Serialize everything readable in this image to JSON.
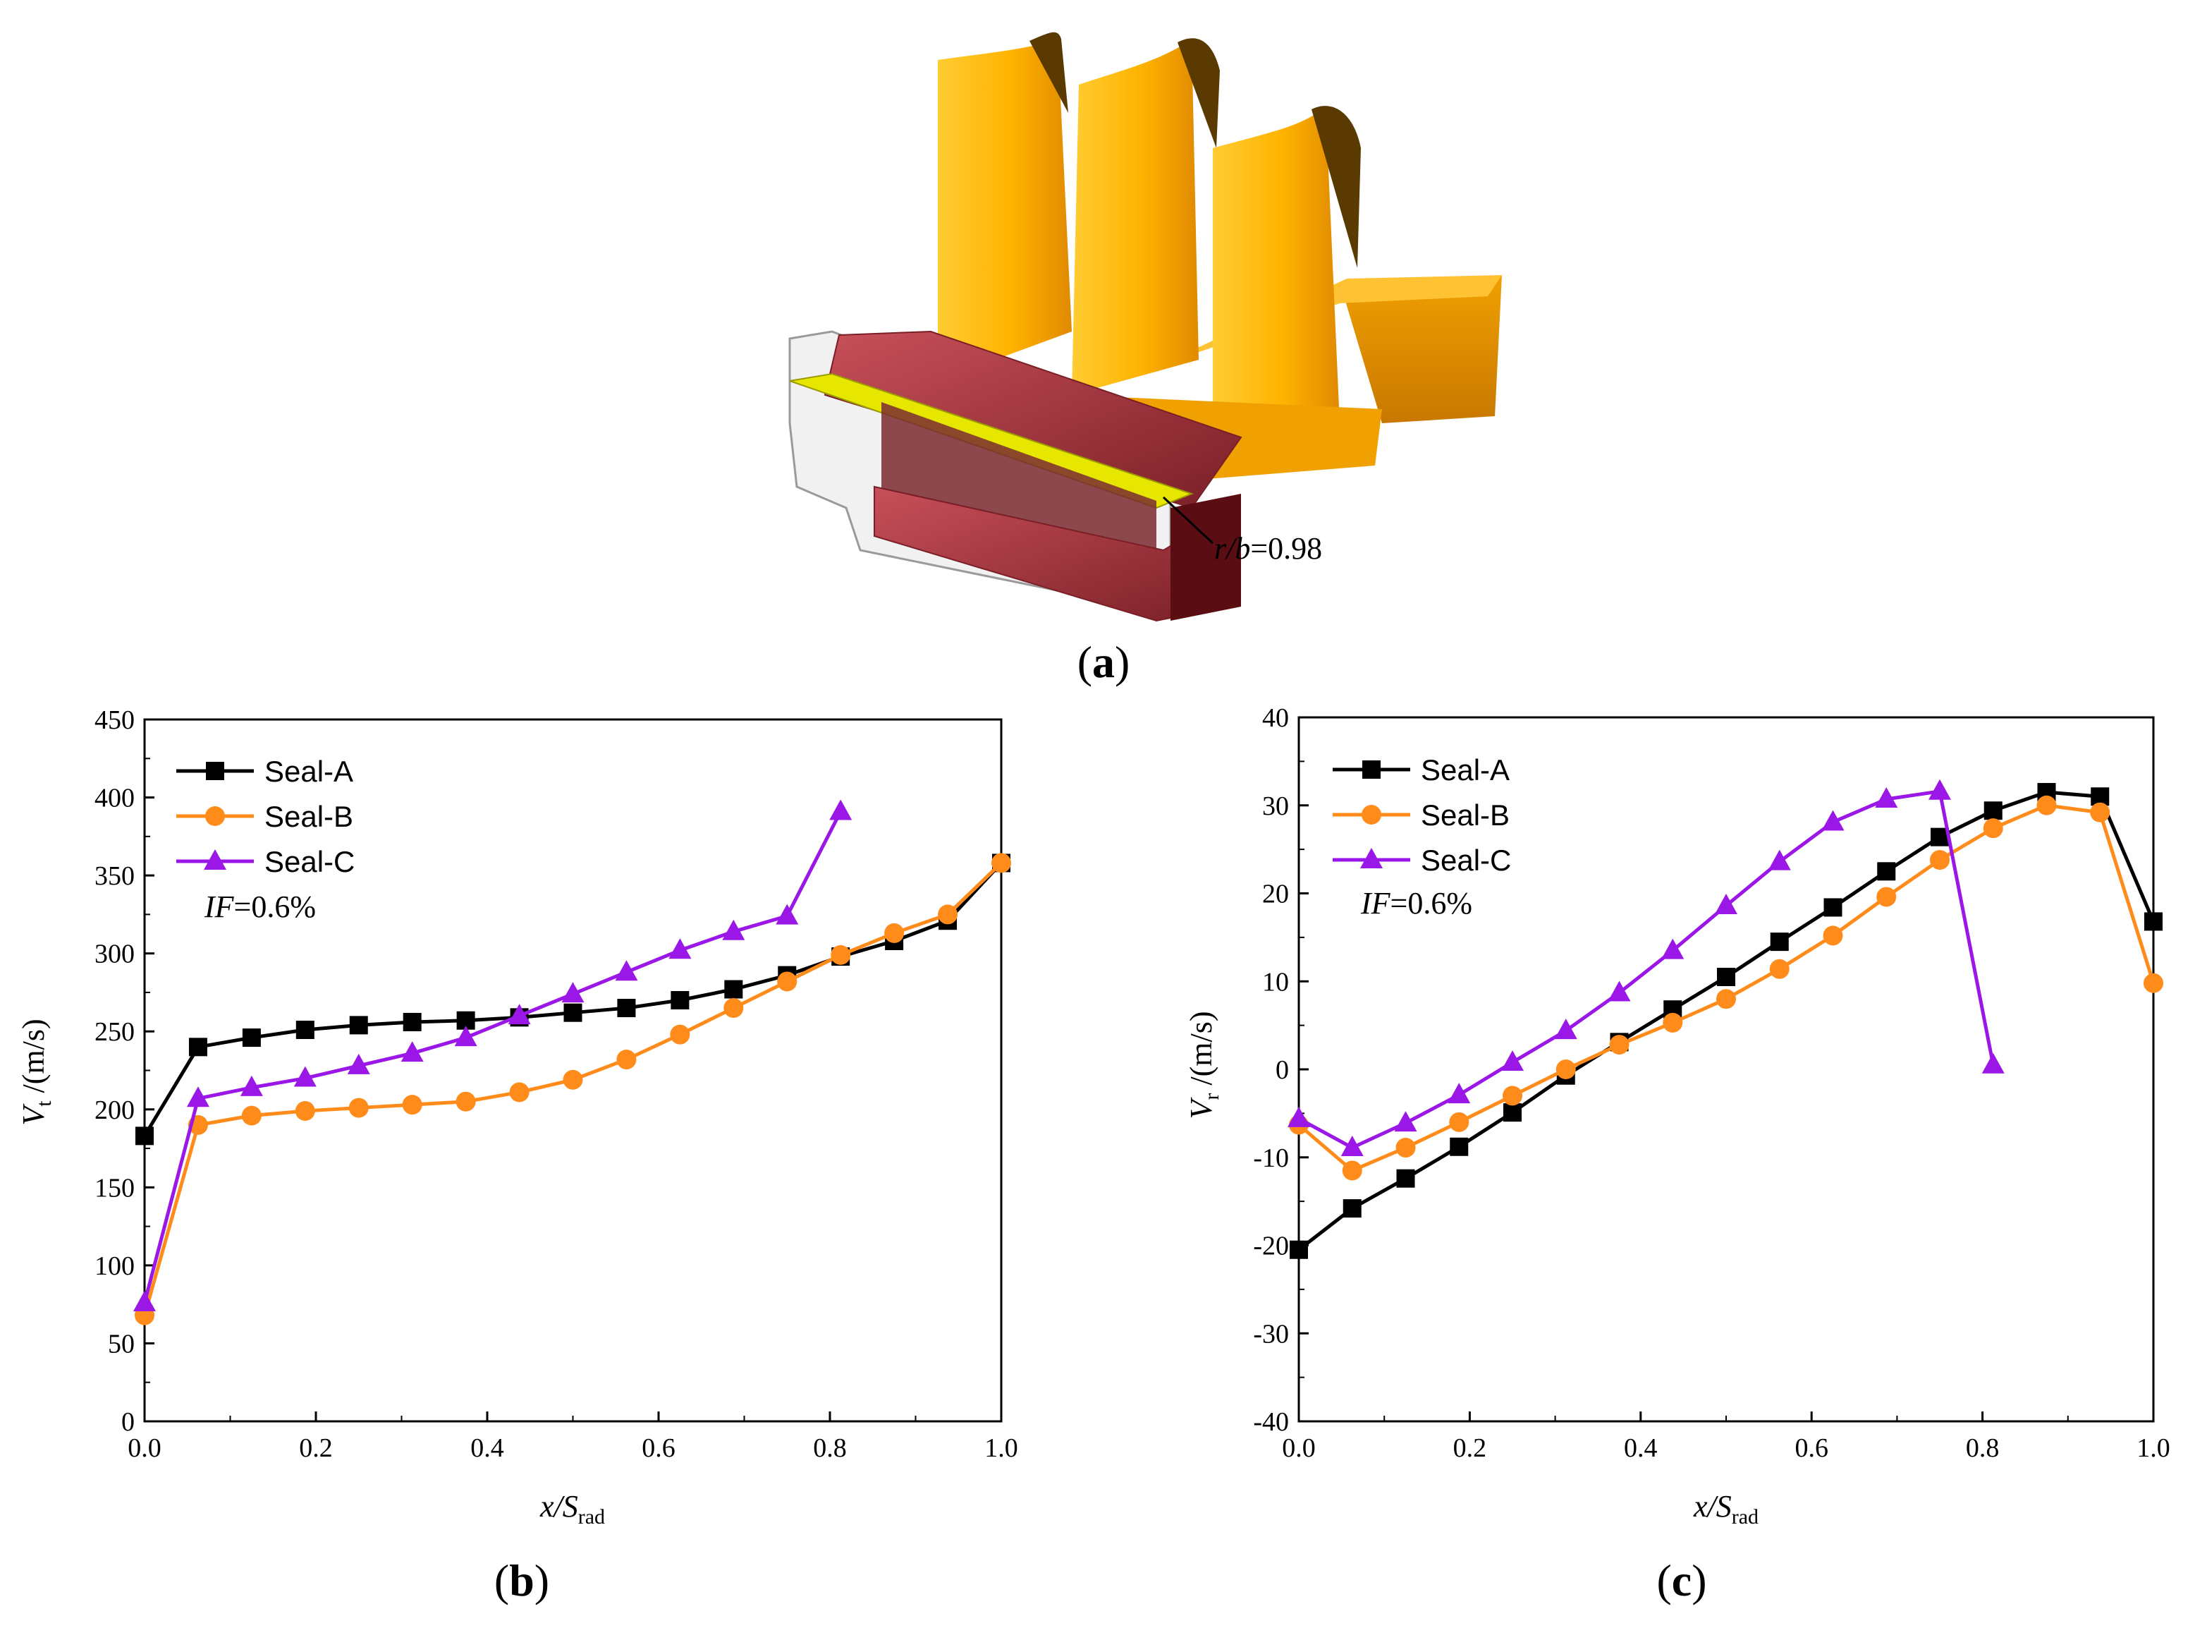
{
  "figure": {
    "panel_a": {
      "label_letter": "a",
      "annotation_r": "r/b",
      "annotation_value": "=0.98"
    },
    "panel_b": {
      "label_letter": "b"
    },
    "panel_c": {
      "label_letter": "c"
    }
  },
  "colors": {
    "Seal-A": "#000000",
    "Seal-B": "#ff8c1a",
    "Seal-C": "#9a17e8",
    "blade": "#ffb400",
    "seal_red": "#c0404a",
    "seal_yellow": "#e6e600"
  },
  "chart_data": [
    {
      "id": "b",
      "type": "line",
      "title": "",
      "xlabel_main": "x/S",
      "xlabel_sub": "rad",
      "ylabel_main": "V",
      "ylabel_sub": "t",
      "ylabel_unit": " /(m/s)",
      "xlim": [
        0,
        1.0
      ],
      "ylim": [
        0,
        450
      ],
      "xticks": [
        0.0,
        0.2,
        0.4,
        0.6,
        0.8,
        1.0
      ],
      "xtick_labels": [
        "0.0",
        "0.2",
        "0.4",
        "0.6",
        "0.8",
        "1.0"
      ],
      "yticks": [
        0,
        50,
        100,
        150,
        200,
        250,
        300,
        350,
        400,
        450
      ],
      "ytick_labels": [
        "0",
        "50",
        "100",
        "150",
        "200",
        "250",
        "300",
        "350",
        "400",
        "450"
      ],
      "annotation_italic": "IF",
      "annotation_value": "=0.6%",
      "legend_position": "top-left",
      "series": [
        {
          "name": "Seal-A",
          "marker": "square",
          "x": [
            0,
            0.0625,
            0.125,
            0.1875,
            0.25,
            0.3125,
            0.375,
            0.4375,
            0.5,
            0.5625,
            0.625,
            0.6875,
            0.75,
            0.8125,
            0.875,
            0.9375,
            1.0
          ],
          "y": [
            183,
            240,
            246,
            251,
            254,
            256,
            257,
            259,
            262,
            265,
            270,
            277,
            286,
            298,
            308,
            321,
            358
          ]
        },
        {
          "name": "Seal-B",
          "marker": "circle",
          "x": [
            0,
            0.0625,
            0.125,
            0.1875,
            0.25,
            0.3125,
            0.375,
            0.4375,
            0.5,
            0.5625,
            0.625,
            0.6875,
            0.75,
            0.8125,
            0.875,
            0.9375,
            1.0
          ],
          "y": [
            68,
            190,
            196,
            199,
            201,
            203,
            205,
            211,
            219,
            232,
            248,
            265,
            282,
            299,
            313,
            325,
            358
          ]
        },
        {
          "name": "Seal-C",
          "marker": "triangle",
          "x": [
            0,
            0.0625,
            0.125,
            0.1875,
            0.25,
            0.3125,
            0.375,
            0.4375,
            0.5,
            0.5625,
            0.625,
            0.6875,
            0.75,
            0.8125
          ],
          "y": [
            76,
            207,
            214,
            220,
            228,
            236,
            246,
            260,
            274,
            288,
            302,
            314,
            324,
            391
          ]
        }
      ]
    },
    {
      "id": "c",
      "type": "line",
      "title": "",
      "xlabel_main": "x/S",
      "xlabel_sub": "rad",
      "ylabel_main": "V",
      "ylabel_sub": "r",
      "ylabel_unit": " /(m/s)",
      "xlim": [
        0,
        1.0
      ],
      "ylim": [
        -40,
        40
      ],
      "xticks": [
        0.0,
        0.2,
        0.4,
        0.6,
        0.8,
        1.0
      ],
      "xtick_labels": [
        "0.0",
        "0.2",
        "0.4",
        "0.6",
        "0.8",
        "1.0"
      ],
      "yticks": [
        -40,
        -30,
        -20,
        -10,
        0,
        10,
        20,
        30,
        40
      ],
      "ytick_labels": [
        "-40",
        "-30",
        "-20",
        "-10",
        "0",
        "10",
        "20",
        "30",
        "40"
      ],
      "annotation_italic": "IF",
      "annotation_value": "=0.6%",
      "legend_position": "top-left",
      "series": [
        {
          "name": "Seal-A",
          "marker": "square",
          "x": [
            0,
            0.0625,
            0.125,
            0.1875,
            0.25,
            0.3125,
            0.375,
            0.4375,
            0.5,
            0.5625,
            0.625,
            0.6875,
            0.75,
            0.8125,
            0.875,
            0.9375,
            1.0
          ],
          "y": [
            -20.5,
            -15.8,
            -12.4,
            -8.8,
            -4.9,
            -0.7,
            3.1,
            6.8,
            10.5,
            14.5,
            18.4,
            22.5,
            26.4,
            29.4,
            31.5,
            31.0,
            16.8
          ]
        },
        {
          "name": "Seal-B",
          "marker": "circle",
          "x": [
            0,
            0.0625,
            0.125,
            0.1875,
            0.25,
            0.3125,
            0.375,
            0.4375,
            0.5,
            0.5625,
            0.625,
            0.6875,
            0.75,
            0.8125,
            0.875,
            0.9375,
            1.0
          ],
          "y": [
            -6.3,
            -11.5,
            -8.9,
            -6.0,
            -3.0,
            0.0,
            2.8,
            5.3,
            8.0,
            11.4,
            15.2,
            19.6,
            23.8,
            27.4,
            30.0,
            29.2,
            9.8
          ]
        },
        {
          "name": "Seal-C",
          "marker": "triangle",
          "x": [
            0,
            0.0625,
            0.125,
            0.1875,
            0.25,
            0.3125,
            0.375,
            0.4375,
            0.5,
            0.5625,
            0.625,
            0.6875,
            0.75,
            0.8125
          ],
          "y": [
            -5.6,
            -8.9,
            -6.1,
            -2.9,
            0.8,
            4.4,
            8.7,
            13.5,
            18.6,
            23.6,
            28.1,
            30.7,
            31.6,
            0.5
          ]
        }
      ]
    }
  ]
}
